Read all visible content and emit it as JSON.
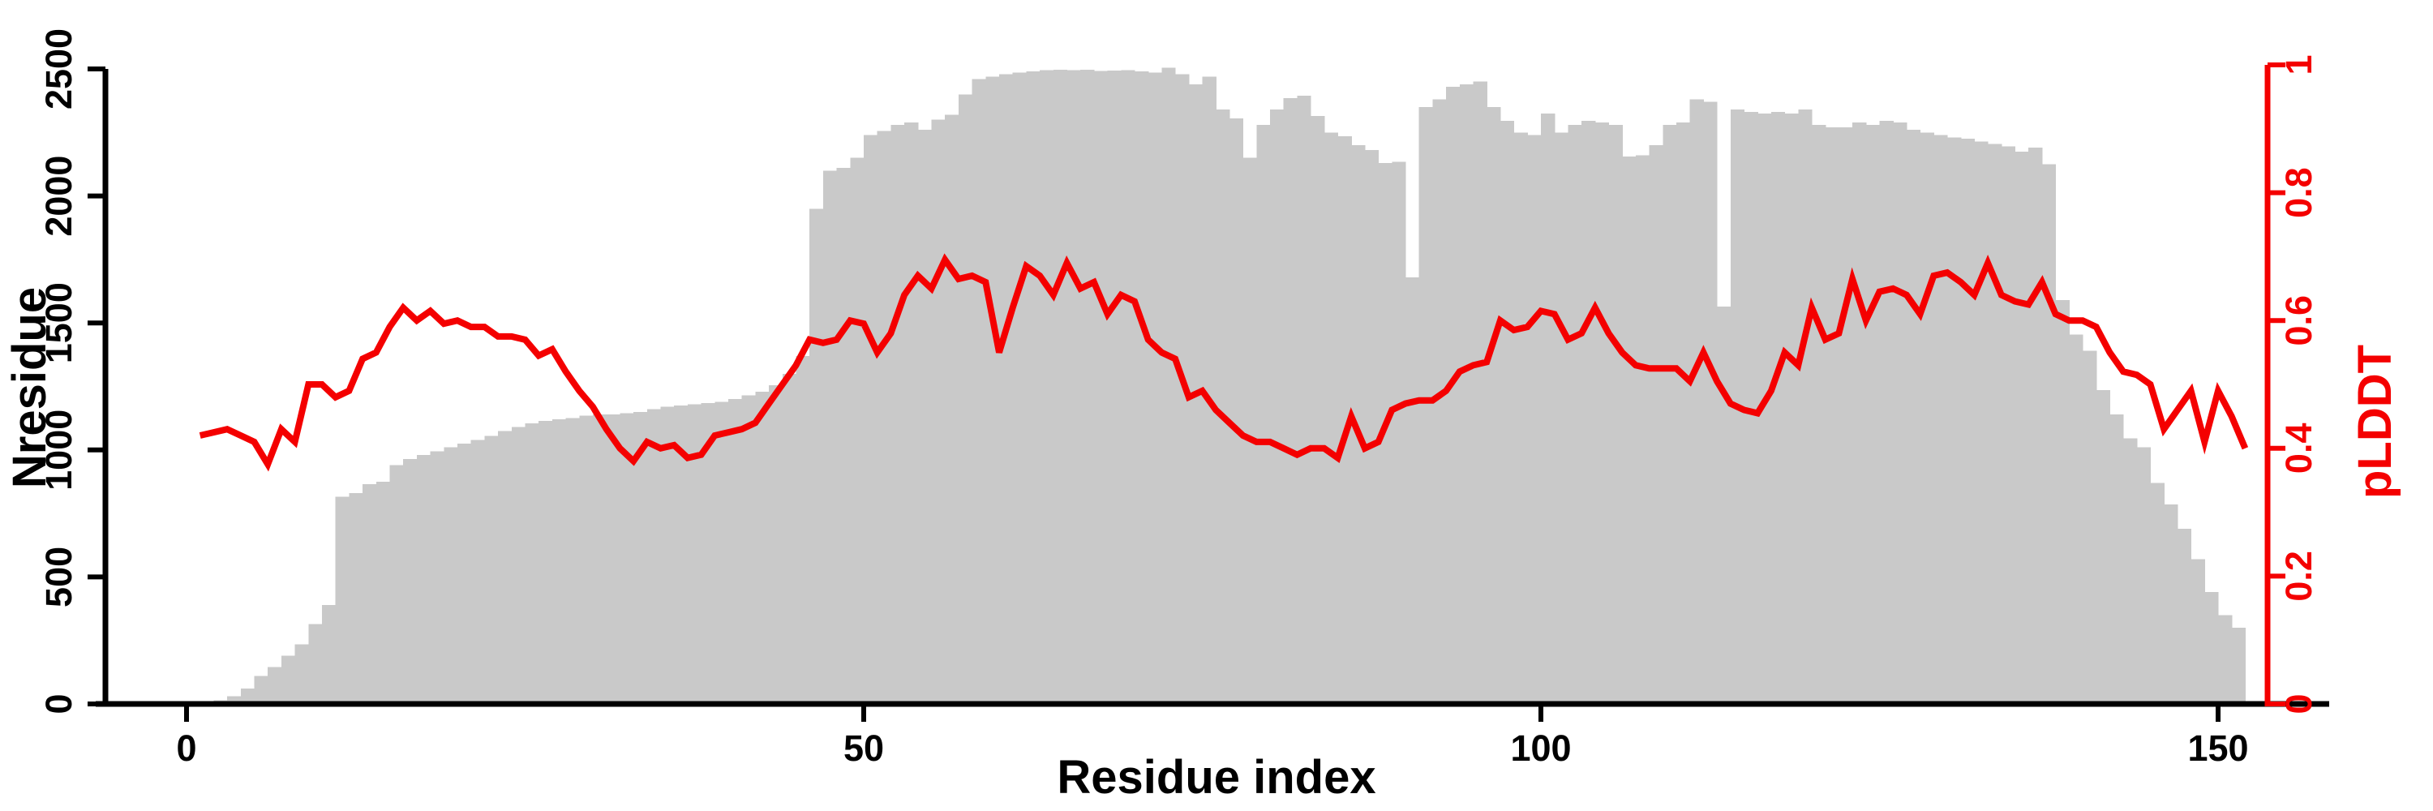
{
  "chart_data": {
    "type": "bar+line",
    "title": "",
    "xlabel": "Residue index",
    "ylabel_left": "Nresidue",
    "ylabel_right": "pLDDT",
    "x_ticks": [
      0,
      50,
      100,
      150
    ],
    "y_left_ticks": [
      0,
      500,
      1000,
      1500,
      2000,
      2500
    ],
    "y_right_ticks": [
      0,
      0.2,
      0.4,
      0.6,
      0.8,
      1
    ],
    "xlim": [
      -7,
      160
    ],
    "ylim_left": [
      0,
      2500
    ],
    "ylim_right": [
      0,
      1
    ],
    "x_start_residue": 1,
    "grid": false,
    "legend_position": "none",
    "colors": {
      "bar": "#c9c9c9",
      "line": "#f40000",
      "axis": "#000000",
      "right_axis": "#f40000",
      "background": "#ffffff"
    },
    "series": [
      {
        "name": "Nresidue",
        "type": "bar",
        "axis": "left",
        "values": [
          0,
          0,
          15,
          30,
          60,
          110,
          145,
          190,
          235,
          315,
          390,
          815,
          830,
          865,
          875,
          940,
          965,
          980,
          995,
          1010,
          1025,
          1040,
          1055,
          1075,
          1090,
          1105,
          1115,
          1120,
          1125,
          1135,
          1140,
          1140,
          1145,
          1150,
          1160,
          1170,
          1175,
          1180,
          1185,
          1190,
          1200,
          1215,
          1230,
          1255,
          1300,
          1370,
          1950,
          2100,
          2110,
          2150,
          2240,
          2255,
          2280,
          2290,
          2260,
          2300,
          2320,
          2400,
          2460,
          2470,
          2480,
          2485,
          2490,
          2495,
          2497,
          2495,
          2497,
          2492,
          2494,
          2496,
          2490,
          2485,
          2505,
          2480,
          2440,
          2470,
          2340,
          2305,
          2150,
          2280,
          2340,
          2385,
          2395,
          2315,
          2250,
          2235,
          2200,
          2180,
          2130,
          2135,
          1680,
          2350,
          2380,
          2430,
          2440,
          2450,
          2350,
          2295,
          2250,
          2240,
          2325,
          2250,
          2280,
          2295,
          2290,
          2280,
          2155,
          2160,
          2200,
          2280,
          2290,
          2380,
          2370,
          1565,
          2340,
          2330,
          2325,
          2330,
          2325,
          2340,
          2280,
          2270,
          2270,
          2290,
          2280,
          2295,
          2290,
          2260,
          2250,
          2240,
          2230,
          2225,
          2215,
          2205,
          2195,
          2175,
          2190,
          2125,
          1590,
          1455,
          1390,
          1235,
          1140,
          1045,
          1010,
          870,
          785,
          690,
          570,
          440,
          350,
          300
        ]
      },
      {
        "name": "pLDDT",
        "type": "line",
        "axis": "right",
        "values": [
          0.42,
          0.425,
          0.43,
          0.42,
          0.41,
          0.375,
          0.43,
          0.41,
          0.5,
          0.5,
          0.48,
          0.49,
          0.54,
          0.55,
          0.59,
          0.62,
          0.6,
          0.615,
          0.595,
          0.6,
          0.59,
          0.59,
          0.575,
          0.575,
          0.57,
          0.545,
          0.555,
          0.52,
          0.49,
          0.465,
          0.43,
          0.4,
          0.38,
          0.41,
          0.4,
          0.405,
          0.385,
          0.39,
          0.42,
          0.425,
          0.43,
          0.44,
          0.47,
          0.5,
          0.53,
          0.57,
          0.565,
          0.57,
          0.6,
          0.595,
          0.55,
          0.58,
          0.64,
          0.67,
          0.65,
          0.695,
          0.665,
          0.67,
          0.66,
          0.55,
          0.62,
          0.685,
          0.67,
          0.64,
          0.69,
          0.65,
          0.66,
          0.61,
          0.64,
          0.63,
          0.57,
          0.55,
          0.54,
          0.48,
          0.49,
          0.46,
          0.44,
          0.42,
          0.41,
          0.41,
          0.4,
          0.39,
          0.4,
          0.4,
          0.385,
          0.45,
          0.4,
          0.41,
          0.46,
          0.47,
          0.475,
          0.475,
          0.49,
          0.52,
          0.53,
          0.535,
          0.6,
          0.585,
          0.59,
          0.615,
          0.61,
          0.57,
          0.58,
          0.62,
          0.58,
          0.55,
          0.53,
          0.525,
          0.525,
          0.525,
          0.505,
          0.55,
          0.505,
          0.47,
          0.46,
          0.455,
          0.49,
          0.55,
          0.53,
          0.62,
          0.57,
          0.58,
          0.665,
          0.6,
          0.645,
          0.65,
          0.64,
          0.61,
          0.67,
          0.675,
          0.66,
          0.64,
          0.69,
          0.64,
          0.63,
          0.625,
          0.66,
          0.61,
          0.6,
          0.6,
          0.59,
          0.55,
          0.52,
          0.515,
          0.5,
          0.43,
          0.46,
          0.49,
          0.41,
          0.49,
          0.45,
          0.4
        ]
      }
    ]
  }
}
